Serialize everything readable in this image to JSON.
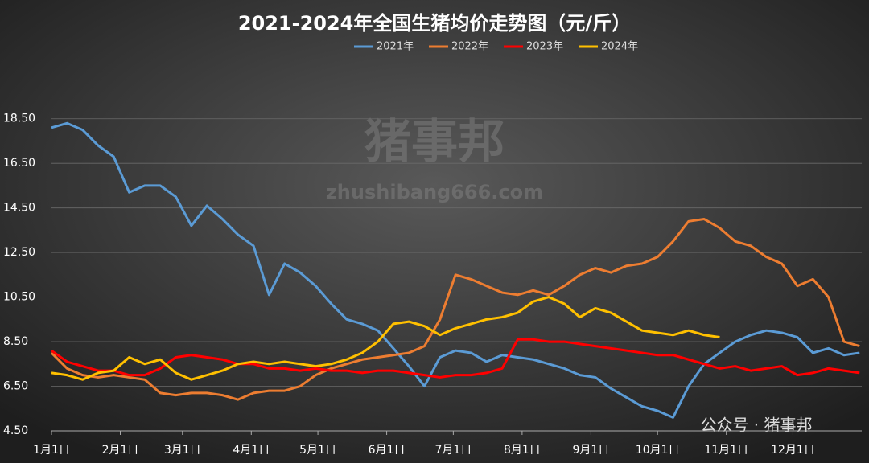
{
  "chart_data": {
    "type": "line",
    "title": "2021-2024年全国生猪均价走势图（元/斤）",
    "watermark": "猪事邦",
    "watermark_url": "zhushibang666.com",
    "footer": "公众号 · 猪事邦",
    "x": [
      0,
      7,
      14,
      21,
      28,
      35,
      42,
      49,
      56,
      63,
      70,
      77,
      84,
      91,
      98,
      105,
      112,
      119,
      126,
      133,
      140,
      147,
      154,
      161,
      168,
      175,
      182,
      189,
      196,
      203,
      210,
      217,
      224,
      231,
      238,
      245,
      252,
      259,
      266,
      273,
      280,
      287,
      294,
      301,
      308,
      315,
      322,
      329,
      336,
      343,
      350,
      357,
      364
    ],
    "xlim": [
      0,
      365
    ],
    "xticks": [
      {
        "value": 0,
        "label": "1月1日"
      },
      {
        "value": 31,
        "label": "2月1日"
      },
      {
        "value": 59,
        "label": "3月1日"
      },
      {
        "value": 90,
        "label": "4月1日"
      },
      {
        "value": 120,
        "label": "5月1日"
      },
      {
        "value": 151,
        "label": "6月1日"
      },
      {
        "value": 181,
        "label": "7月1日"
      },
      {
        "value": 212,
        "label": "8月1日"
      },
      {
        "value": 243,
        "label": "9月1日"
      },
      {
        "value": 273,
        "label": "10月1日"
      },
      {
        "value": 304,
        "label": "11月1日"
      },
      {
        "value": 334,
        "label": "12月1日"
      }
    ],
    "ylim": [
      4.5,
      19.5
    ],
    "yticks": [
      {
        "value": 4.5,
        "label": "4.50"
      },
      {
        "value": 6.5,
        "label": "6.50"
      },
      {
        "value": 8.5,
        "label": "8.50"
      },
      {
        "value": 10.5,
        "label": "10.50"
      },
      {
        "value": 12.5,
        "label": "12.50"
      },
      {
        "value": 14.5,
        "label": "14.50"
      },
      {
        "value": 16.5,
        "label": "16.50"
      },
      {
        "value": 18.5,
        "label": "18.50"
      }
    ],
    "grid": true,
    "series": [
      {
        "name": "2021年",
        "color": "#5b9bd5",
        "values": [
          18.1,
          18.3,
          18.0,
          17.3,
          16.8,
          15.2,
          15.5,
          15.5,
          15.0,
          13.7,
          14.6,
          14.0,
          13.3,
          12.8,
          10.6,
          12.0,
          11.6,
          11.0,
          10.2,
          9.5,
          9.3,
          9.0,
          8.2,
          7.4,
          6.5,
          7.8,
          8.1,
          8.0,
          7.6,
          7.9,
          7.8,
          7.7,
          7.5,
          7.3,
          7.0,
          6.9,
          6.4,
          6.0,
          5.6,
          5.4,
          5.1,
          6.5,
          7.5,
          8.0,
          8.5,
          8.8,
          9.0,
          8.9,
          8.7,
          8.0,
          8.2,
          7.9,
          8.0
        ]
      },
      {
        "name": "2022年",
        "color": "#ed7d31",
        "values": [
          8.0,
          7.3,
          7.0,
          6.9,
          7.0,
          6.9,
          6.8,
          6.2,
          6.1,
          6.2,
          6.2,
          6.1,
          5.9,
          6.2,
          6.3,
          6.3,
          6.5,
          7.0,
          7.3,
          7.5,
          7.7,
          7.8,
          7.9,
          8.0,
          8.3,
          9.5,
          11.5,
          11.3,
          11.0,
          10.7,
          10.6,
          10.8,
          10.6,
          11.0,
          11.5,
          11.8,
          11.6,
          11.9,
          12.0,
          12.3,
          13.0,
          13.9,
          14.0,
          13.6,
          13.0,
          12.8,
          12.3,
          12.0,
          11.0,
          11.3,
          10.5,
          8.5,
          8.3
        ]
      },
      {
        "name": "2023年",
        "color": "#ff0000",
        "values": [
          8.1,
          7.6,
          7.4,
          7.2,
          7.2,
          7.0,
          7.0,
          7.3,
          7.8,
          7.9,
          7.8,
          7.7,
          7.5,
          7.5,
          7.3,
          7.3,
          7.2,
          7.3,
          7.2,
          7.2,
          7.1,
          7.2,
          7.2,
          7.1,
          7.0,
          6.9,
          7.0,
          7.0,
          7.1,
          7.3,
          8.6,
          8.6,
          8.5,
          8.5,
          8.4,
          8.3,
          8.2,
          8.1,
          8.0,
          7.9,
          7.9,
          7.7,
          7.5,
          7.3,
          7.4,
          7.2,
          7.3,
          7.4,
          7.0,
          7.1,
          7.3,
          7.2,
          7.1
        ]
      },
      {
        "name": "2024年",
        "color": "#ffc000",
        "values": [
          7.1,
          7.0,
          6.8,
          7.1,
          7.2,
          7.8,
          7.5,
          7.7,
          7.1,
          6.8,
          7.0,
          7.2,
          7.5,
          7.6,
          7.5,
          7.6,
          7.5,
          7.4,
          7.5,
          7.7,
          8.0,
          8.5,
          9.3,
          9.4,
          9.2,
          8.8,
          9.1,
          9.3,
          9.5,
          9.6,
          9.8,
          10.3,
          10.5,
          10.2,
          9.6,
          10.0,
          9.8,
          9.4,
          9.0,
          8.9,
          8.8,
          9.0,
          8.8,
          8.7,
          null,
          null,
          null,
          null,
          null,
          null,
          null,
          null,
          null
        ]
      }
    ]
  }
}
